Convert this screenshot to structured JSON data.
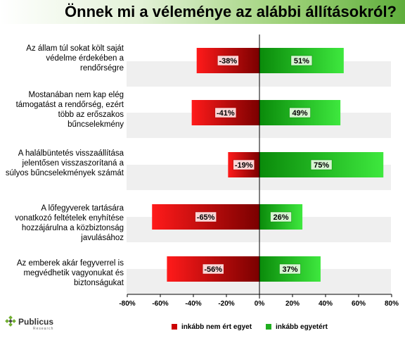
{
  "title": "Önnek mi a véleménye az alábbi állításokról?",
  "brand": {
    "name": "Publicus",
    "sub": "Research"
  },
  "legend": {
    "negative": "inkább nem ért egyet",
    "positive": "inkább egyetért"
  },
  "colors": {
    "negative": "#cc0000",
    "positive": "#1fae1f",
    "header": "#5fae3c"
  },
  "chart_data": {
    "type": "bar",
    "orientation": "horizontal-diverging",
    "categories": [
      "Az állam túl sokat költ saját védelme érdekében a rendőrségre",
      "Mostanában nem kap elég támogatást a rendőrség, ezért több az erőszakos bűncselekmény",
      "A halálbüntetés visszaállítása jelentősen visszaszorítaná a súlyos bűncselekmények számát",
      "A lőfegyverek tartására vonatkozó feltételek enyhítése hozzájárulna a közbiztonság javulásához",
      "Az emberek akár fegyverrel is megvédhetik vagyonukat és biztonságukat"
    ],
    "series": [
      {
        "name": "inkább nem ért egyet",
        "values": [
          -38,
          -41,
          -19,
          -65,
          -56
        ]
      },
      {
        "name": "inkább egyetért",
        "values": [
          51,
          49,
          75,
          26,
          37
        ]
      }
    ],
    "value_labels": {
      "negative": [
        "-38%",
        "-41%",
        "-19%",
        "-65%",
        "-56%"
      ],
      "positive": [
        "51%",
        "49%",
        "75%",
        "26%",
        "37%"
      ]
    },
    "xlim": [
      -80,
      80
    ],
    "xticks": [
      "-80%",
      "-60%",
      "-40%",
      "-20%",
      "0%",
      "20%",
      "40%",
      "60%",
      "80%"
    ],
    "grid": false,
    "legend_position": "bottom"
  }
}
